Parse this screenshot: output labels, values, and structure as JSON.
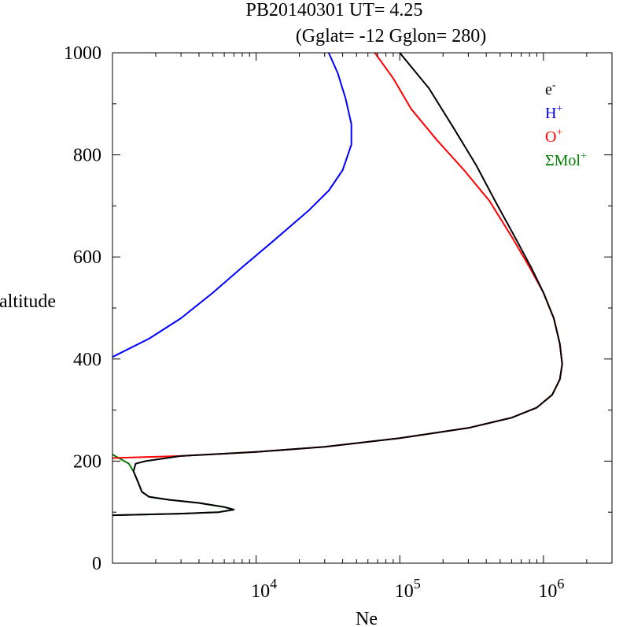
{
  "chart_data": {
    "type": "line",
    "title_line1": "PB20140301   UT=  4.25",
    "title_line2": "(Gglat= -12   Gglon=  280)",
    "xlabel": "Ne",
    "ylabel": "altitude",
    "xscale": "log",
    "xlim": [
      1000,
      3000000
    ],
    "ylim": [
      0,
      1000
    ],
    "yticks": [
      0,
      200,
      400,
      600,
      800,
      1000
    ],
    "ytick_labels": [
      "0",
      "200",
      "400",
      "600",
      "800",
      "1000"
    ],
    "xticks": [
      10000,
      100000,
      1000000
    ],
    "xtick_labels": [
      {
        "base": "10",
        "exp": "4"
      },
      {
        "base": "10",
        "exp": "5"
      },
      {
        "base": "10",
        "exp": "6"
      }
    ],
    "legend_position": "top-right",
    "legend": [
      {
        "base": "e",
        "sup": "-",
        "color": "#000000"
      },
      {
        "base": "H",
        "sup": "+",
        "color": "#0000ff"
      },
      {
        "base": "O",
        "sup": "+",
        "color": "#ff0000"
      },
      {
        "base": "ΣMol",
        "sup": "+",
        "color": "#008000"
      }
    ],
    "series": [
      {
        "color": "#008000",
        "points": [
          [
            1000,
            213
          ],
          [
            1300,
            195
          ],
          [
            1400,
            180
          ],
          [
            1500,
            160
          ],
          [
            1600,
            140
          ],
          [
            1800,
            130
          ],
          [
            2500,
            124
          ],
          [
            4000,
            118
          ],
          [
            6000,
            110
          ],
          [
            7000,
            105
          ],
          [
            5500,
            100
          ],
          [
            3000,
            97
          ],
          [
            1000,
            94
          ]
        ]
      },
      {
        "color": "#ff0000",
        "points": [
          [
            1000,
            206
          ],
          [
            3000,
            210
          ],
          [
            10000,
            218
          ],
          [
            30000,
            228
          ],
          [
            100000,
            245
          ],
          [
            300000,
            265
          ],
          [
            600000,
            285
          ],
          [
            900000,
            305
          ],
          [
            1150000,
            330
          ],
          [
            1300000,
            360
          ],
          [
            1350000,
            390
          ],
          [
            1300000,
            430
          ],
          [
            1180000,
            480
          ],
          [
            1000000,
            530
          ],
          [
            800000,
            580
          ],
          [
            600000,
            640
          ],
          [
            420000,
            710
          ],
          [
            280000,
            770
          ],
          [
            180000,
            830
          ],
          [
            120000,
            890
          ],
          [
            90000,
            950
          ],
          [
            67000,
            1000
          ]
        ]
      },
      {
        "color": "#000000",
        "points": [
          [
            1000,
            94
          ],
          [
            3000,
            97
          ],
          [
            5500,
            100
          ],
          [
            7000,
            105
          ],
          [
            6000,
            110
          ],
          [
            4000,
            118
          ],
          [
            2500,
            124
          ],
          [
            1800,
            130
          ],
          [
            1600,
            140
          ],
          [
            1500,
            160
          ],
          [
            1400,
            180
          ],
          [
            1450,
            195
          ],
          [
            1700,
            200
          ],
          [
            3000,
            210
          ],
          [
            10000,
            218
          ],
          [
            30000,
            228
          ],
          [
            100000,
            245
          ],
          [
            300000,
            265
          ],
          [
            600000,
            285
          ],
          [
            900000,
            305
          ],
          [
            1150000,
            330
          ],
          [
            1300000,
            360
          ],
          [
            1350000,
            390
          ],
          [
            1300000,
            430
          ],
          [
            1180000,
            480
          ],
          [
            1000000,
            530
          ],
          [
            820000,
            580
          ],
          [
            630000,
            640
          ],
          [
            460000,
            710
          ],
          [
            340000,
            780
          ],
          [
            240000,
            850
          ],
          [
            160000,
            930
          ],
          [
            100000,
            1000
          ]
        ]
      },
      {
        "color": "#0000ff",
        "points": [
          [
            1000,
            404
          ],
          [
            1800,
            440
          ],
          [
            3000,
            480
          ],
          [
            5000,
            530
          ],
          [
            8000,
            580
          ],
          [
            13000,
            630
          ],
          [
            23000,
            690
          ],
          [
            32000,
            730
          ],
          [
            40000,
            770
          ],
          [
            46000,
            820
          ],
          [
            46000,
            860
          ],
          [
            42000,
            910
          ],
          [
            37000,
            960
          ],
          [
            32000,
            1000
          ]
        ]
      }
    ]
  }
}
